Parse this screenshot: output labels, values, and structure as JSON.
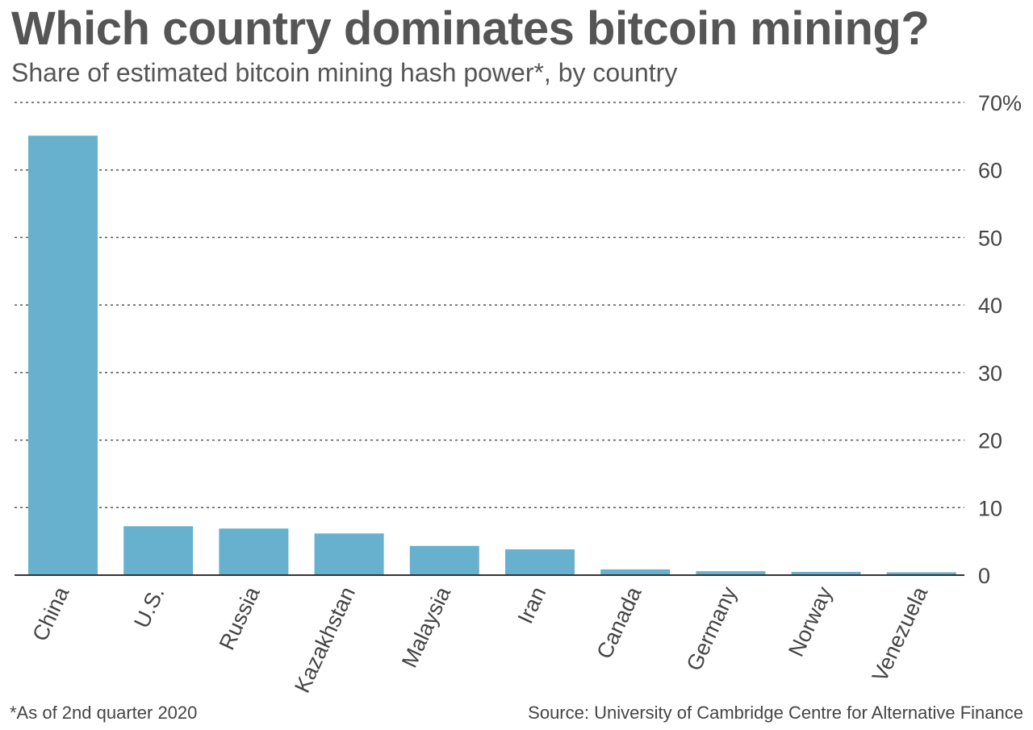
{
  "title": "Which country dominates bitcoin mining?",
  "subtitle": "Share of estimated bitcoin mining hash power*, by country",
  "footnote": "*As of 2nd quarter 2020",
  "source": "Source: University of Cambridge Centre for Alternative Finance",
  "chart_data": {
    "type": "bar",
    "categories": [
      "China",
      "U.S.",
      "Russia",
      "Kazakhstan",
      "Malaysia",
      "Iran",
      "Canada",
      "Germany",
      "Norway",
      "Venezuela"
    ],
    "values": [
      65.08,
      7.24,
      6.9,
      6.17,
      4.33,
      3.82,
      0.85,
      0.58,
      0.48,
      0.42
    ],
    "ylim": [
      0,
      70
    ],
    "yticks": [
      0,
      10,
      20,
      30,
      40,
      50,
      60,
      70
    ],
    "ytick_labels": [
      "0",
      "10",
      "20",
      "30",
      "40",
      "50",
      "60",
      "70%"
    ],
    "grid": true,
    "bar_color": "#67b1cf",
    "title": "Which country dominates bitcoin mining?",
    "xlabel": "",
    "ylabel": ""
  }
}
